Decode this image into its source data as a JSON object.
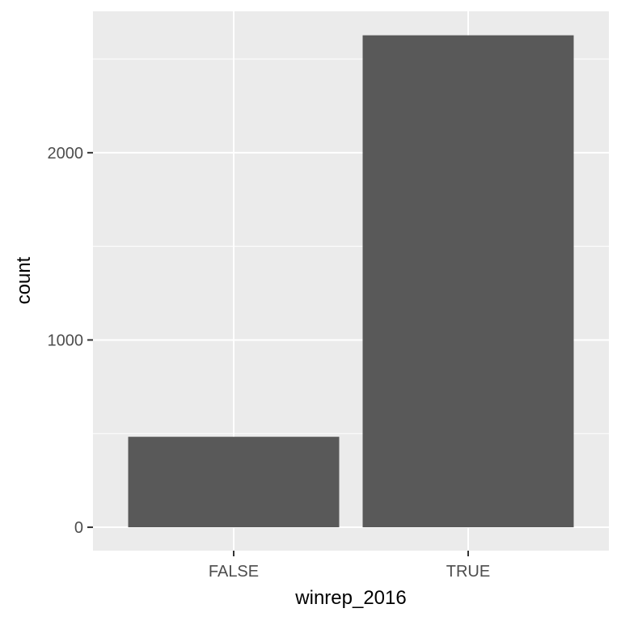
{
  "chart_data": {
    "type": "bar",
    "categories": [
      "FALSE",
      "TRUE"
    ],
    "values": [
      483,
      2627
    ],
    "title": "",
    "xlabel": "winrep_2016",
    "ylabel": "count",
    "ylim": [
      -125,
      2755
    ],
    "yticks": [
      0,
      1000,
      2000
    ],
    "yticks_labels": [
      "0",
      "1000",
      "2000"
    ],
    "grid": true,
    "legend": "none",
    "colors": {
      "panel": "#ebebeb",
      "grid": "#ffffff",
      "bar": "#595959",
      "tick": "#333333",
      "tick_text": "#4d4d4d"
    }
  }
}
